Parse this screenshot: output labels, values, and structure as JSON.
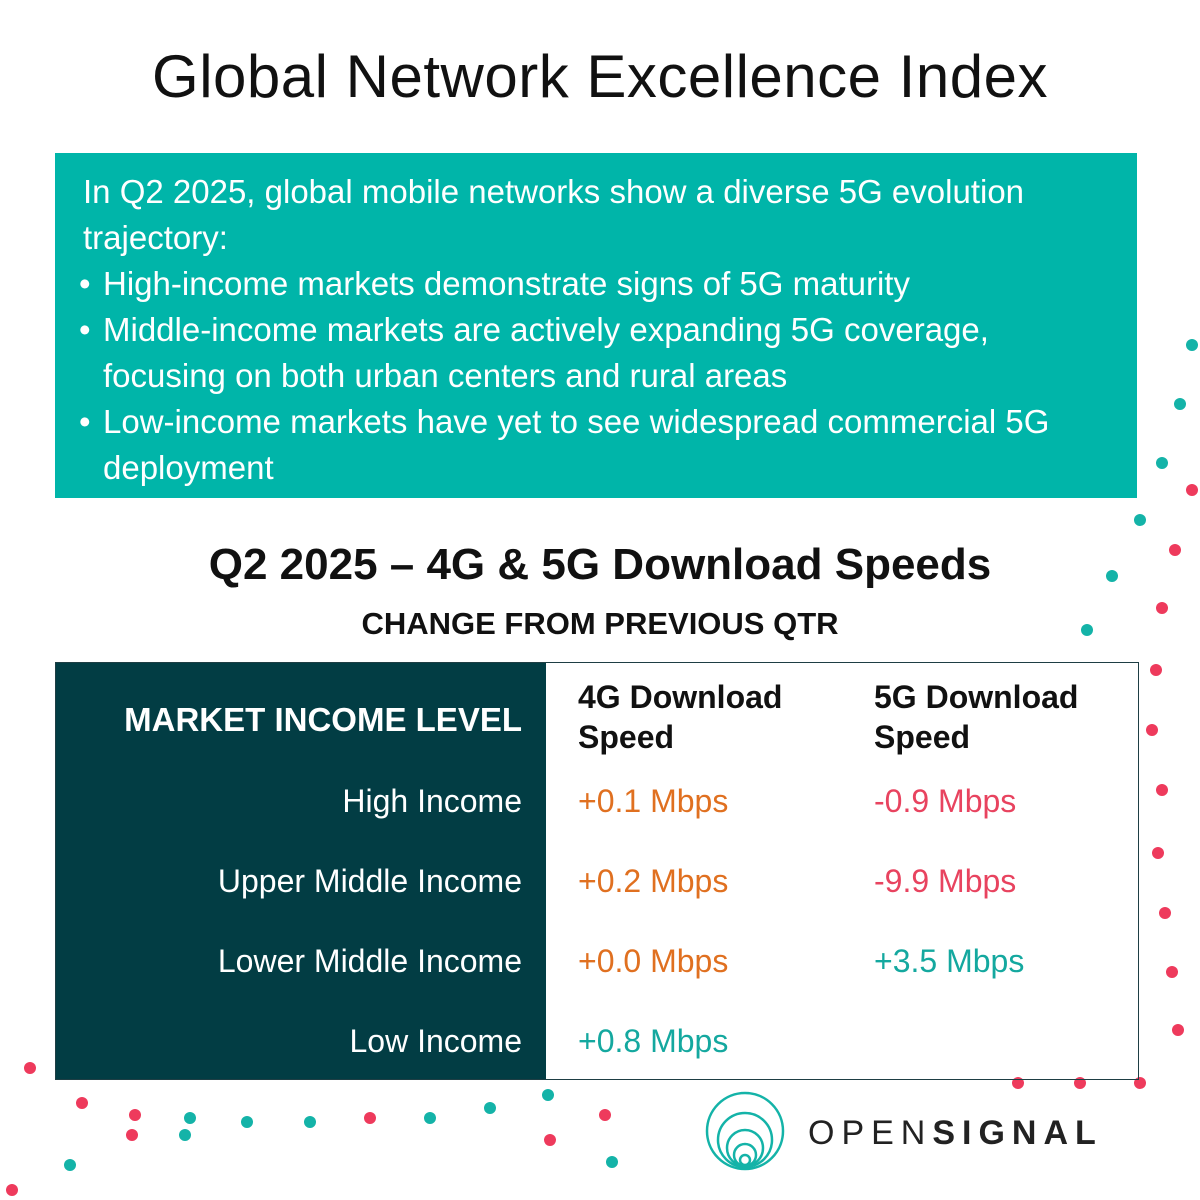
{
  "title": "Global Network Excellence Index",
  "summary": {
    "intro": "In Q2 2025, global mobile networks show a diverse 5G evolution trajectory:",
    "bullets": [
      "High-income markets demonstrate signs of 5G maturity",
      "Middle-income markets are actively expanding 5G coverage, focusing on both urban centers and rural areas",
      "Low-income markets have yet to see widespread commercial 5G deployment"
    ]
  },
  "subtitle": "Q2 2025 – 4G & 5G Download Speeds",
  "caption": "CHANGE FROM PREVIOUS QTR",
  "table": {
    "headers": {
      "market": "MARKET INCOME LEVEL",
      "col4g_line1": "4G Download",
      "col4g_line2": "Speed",
      "col5g_line1": "5G Download",
      "col5g_line2": "Speed"
    },
    "rows": [
      {
        "label": "High Income",
        "g4": "+0.1 Mbps",
        "g5": "-0.9 Mbps"
      },
      {
        "label": "Upper Middle Income",
        "g4": "+0.2 Mbps",
        "g5": "-9.9 Mbps"
      },
      {
        "label": "Lower Middle Income",
        "g4": "+0.0 Mbps",
        "g5": "+3.5 Mbps"
      },
      {
        "label": "Low Income",
        "g4": "+0.8 Mbps",
        "g5": ""
      }
    ]
  },
  "colors": {
    "teal": "#00b5a9",
    "dark_teal": "#023d44",
    "orange": "#e07020",
    "pink": "#e8435f",
    "dot_teal": "#14b3a8",
    "dot_pink": "#ee3a5c"
  },
  "logo": {
    "text_light": "OPEN",
    "text_bold": "SIGNAL",
    "icon": "opensignal-logo-icon"
  }
}
